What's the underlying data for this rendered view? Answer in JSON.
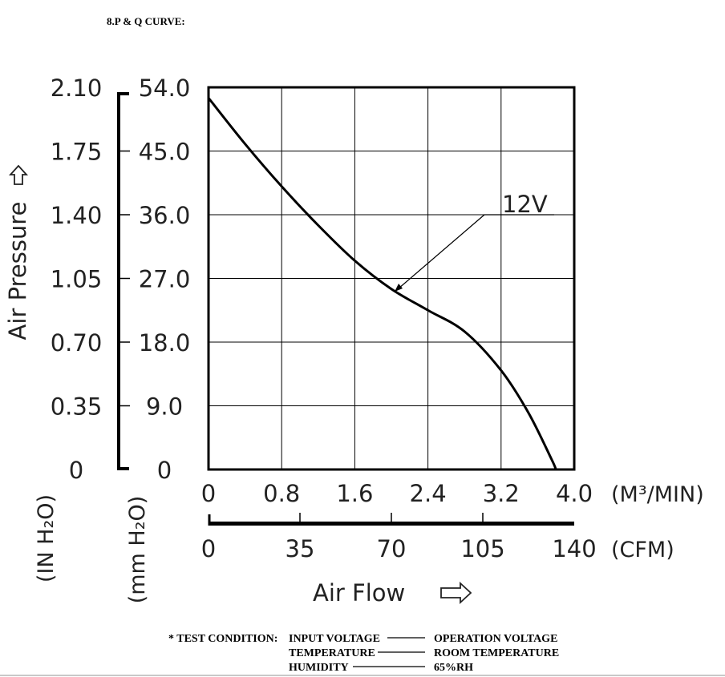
{
  "heading": "8.P & Q CURVE:",
  "ylabel": "Air Pressure",
  "ylabel_in_unit": "(IN H₂O)",
  "ylabel_mm_unit": "(mm H₂O)",
  "xlabel": "Air Flow",
  "x_unit_m3": "(M³/MIN)",
  "x_unit_cfm": "(CFM)",
  "curve_label": "12V",
  "y_ticks_in": [
    "2.10",
    "1.75",
    "1.40",
    "1.05",
    "0.70",
    "0.35",
    "0"
  ],
  "y_ticks_mm": [
    "54.0",
    "45.0",
    "36.0",
    "27.0",
    "18.0",
    "9.0",
    "0"
  ],
  "x_ticks_m3": [
    "0",
    "0.8",
    "1.6",
    "2.4",
    "3.2",
    "4.0"
  ],
  "x_ticks_cfm": [
    "0",
    "35",
    "70",
    "105",
    "140"
  ],
  "test_condition": {
    "title": "* TEST CONDITION:",
    "rows": [
      {
        "label": "INPUT VOLTAGE",
        "value": "OPERATION VOLTAGE"
      },
      {
        "label": "TEMPERATURE",
        "value": "ROOM TEMPERATURE"
      },
      {
        "label": "HUMIDITY",
        "value": "65%RH"
      }
    ]
  },
  "chart_data": {
    "type": "line",
    "title": "8.P & Q CURVE:",
    "xlabel": "Air Flow (M³/MIN)",
    "ylabel": "Air Pressure (mm H₂O)",
    "xlim": [
      0,
      4.0
    ],
    "ylim": [
      0,
      54.0
    ],
    "grid": true,
    "series": [
      {
        "name": "12V",
        "x": [
          0,
          0.4,
          0.8,
          1.2,
          1.6,
          2.0,
          2.4,
          2.8,
          3.2,
          3.5,
          3.75,
          3.8
        ],
        "y": [
          52.5,
          46.0,
          40.0,
          34.5,
          29.5,
          25.5,
          22.5,
          19.5,
          14.0,
          8.0,
          1.5,
          0
        ]
      }
    ],
    "secondary_x": {
      "label": "(CFM)",
      "ticks": [
        0,
        35,
        70,
        105,
        140
      ],
      "lim": [
        0,
        140
      ]
    },
    "secondary_y": {
      "label": "(IN H₂O)",
      "ticks": [
        0,
        0.35,
        0.7,
        1.05,
        1.4,
        1.75,
        2.1
      ],
      "lim": [
        0,
        2.1
      ]
    }
  }
}
